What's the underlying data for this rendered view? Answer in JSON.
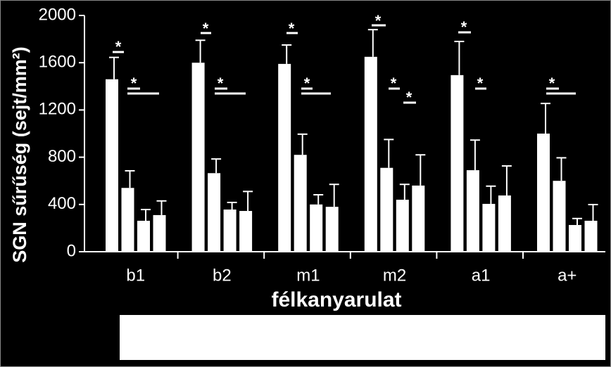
{
  "chart_data": {
    "type": "bar",
    "y_label": "SGN sűrűség (sejt/mm²)",
    "x_label": "félkanyarulat",
    "categories": [
      "b1",
      "b2",
      "m1",
      "m2",
      "a1",
      "a+"
    ],
    "series": [
      {
        "color": "#ffffff",
        "values": [
          1460,
          1600,
          1590,
          1650,
          1495,
          1000
        ],
        "errors": [
          185,
          190,
          160,
          230,
          285,
          255
        ]
      },
      {
        "color": "#ffffff",
        "values": [
          540,
          665,
          820,
          710,
          690,
          600
        ],
        "errors": [
          145,
          120,
          175,
          240,
          255,
          195
        ]
      },
      {
        "color": "#ffffff",
        "values": [
          262,
          357,
          400,
          440,
          405,
          226
        ],
        "errors": [
          95,
          60,
          82,
          130,
          150,
          55
        ]
      },
      {
        "color": "#ffffff",
        "values": [
          310,
          345,
          380,
          560,
          476,
          262
        ],
        "errors": [
          120,
          165,
          190,
          260,
          250,
          137
        ]
      }
    ],
    "error_color": "#ffffff",
    "ylim": [
      0,
      2000
    ],
    "yticks": [
      0,
      400,
      800,
      1200,
      1600,
      2000
    ],
    "annotations": [
      "*",
      "*",
      "*",
      "*",
      "*",
      "*",
      "*",
      "*",
      "*",
      "*",
      "*",
      "*"
    ]
  }
}
